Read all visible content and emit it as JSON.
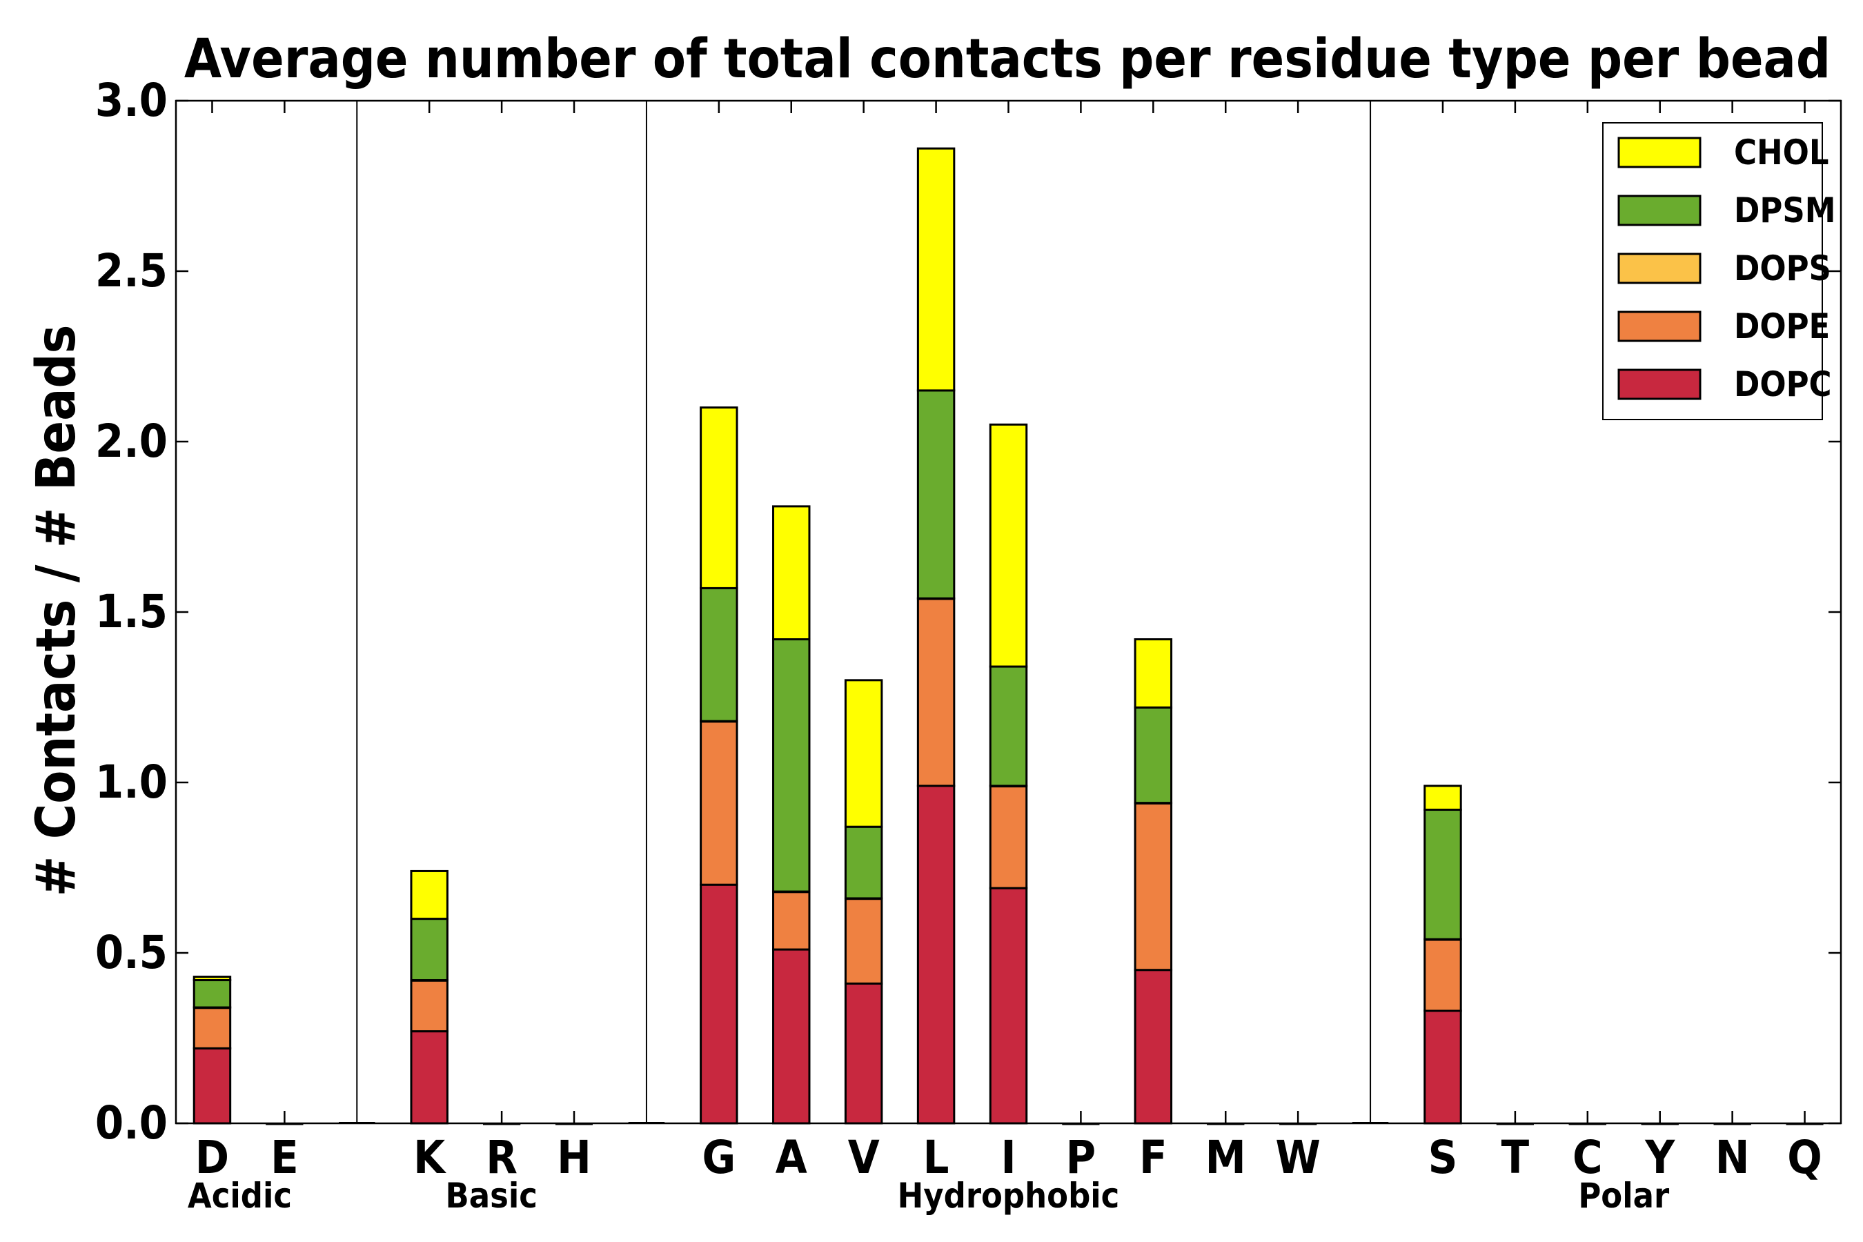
{
  "chart_data": {
    "type": "bar",
    "stacked": true,
    "title": "Average number of total contacts per residue type per bead",
    "xlabel": "",
    "ylabel": "# Contacts / # Beads",
    "ylim": [
      0,
      3.0
    ],
    "yticks": [
      "0.0",
      "0.5",
      "1.0",
      "1.5",
      "2.0",
      "2.5",
      "3.0"
    ],
    "grid": false,
    "legend_position": "top-right",
    "categories": [
      "D",
      "E",
      "",
      "K",
      "R",
      "H",
      "",
      "G",
      "A",
      "V",
      "L",
      "I",
      "P",
      "F",
      "M",
      "W",
      "",
      "S",
      "T",
      "C",
      "Y",
      "N",
      "Q"
    ],
    "groups": [
      {
        "label": "Acidic"
      },
      {
        "label": "Basic"
      },
      {
        "label": "Hydrophobic"
      },
      {
        "label": "Polar"
      }
    ],
    "series": [
      {
        "name": "DOPC",
        "color": "#c8283f",
        "values": [
          0.22,
          0,
          0,
          0.27,
          0,
          0,
          0,
          0.7,
          0.51,
          0.41,
          0.99,
          0.69,
          0,
          0.45,
          0,
          0,
          0,
          0.33,
          0,
          0,
          0,
          0,
          0
        ]
      },
      {
        "name": "DOPE",
        "color": "#ef8141",
        "values": [
          0.12,
          0,
          0,
          0.15,
          0,
          0,
          0,
          0.48,
          0.17,
          0.25,
          0.55,
          0.3,
          0,
          0.49,
          0,
          0,
          0,
          0.21,
          0,
          0,
          0,
          0,
          0
        ]
      },
      {
        "name": "DOPS",
        "color": "#fbc248",
        "values": [
          0,
          0,
          0,
          0,
          0,
          0,
          0,
          0,
          0,
          0,
          0,
          0,
          0,
          0,
          0,
          0,
          0,
          0,
          0,
          0,
          0,
          0,
          0
        ]
      },
      {
        "name": "DPSM",
        "color": "#6aac2e",
        "values": [
          0.08,
          0,
          0,
          0.18,
          0,
          0,
          0,
          0.39,
          0.74,
          0.21,
          0.61,
          0.35,
          0,
          0.28,
          0,
          0,
          0,
          0.38,
          0,
          0,
          0,
          0,
          0
        ]
      },
      {
        "name": "CHOL",
        "color": "#ffff00",
        "values": [
          0.01,
          0,
          0,
          0.14,
          0,
          0,
          0,
          0.53,
          0.39,
          0.43,
          0.71,
          0.71,
          0,
          0.2,
          0,
          0,
          0,
          0.07,
          0,
          0,
          0,
          0,
          0
        ]
      }
    ],
    "legend_order": [
      "CHOL",
      "DPSM",
      "DOPS",
      "DOPE",
      "DOPC"
    ]
  }
}
